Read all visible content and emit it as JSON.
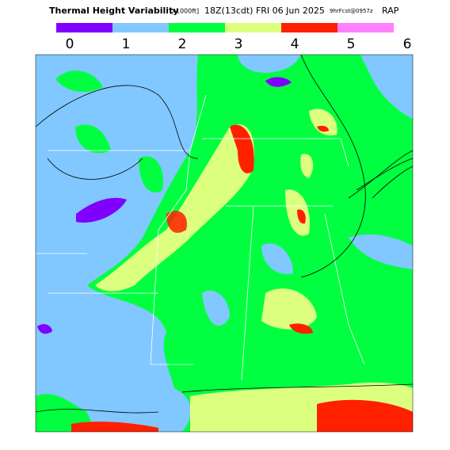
{
  "header": {
    "title": "Thermal Height Variability",
    "units": "[x1000ft]",
    "time": "18Z(13cdt) FRI 06 Jun 2025",
    "forecast": "9hrFcst@0957z",
    "model": "RAP"
  },
  "colorbar": {
    "labels": [
      0,
      1,
      2,
      3,
      4,
      5,
      6
    ],
    "colors": [
      "#8000ff",
      "#80c8ff",
      "#00ff40",
      "#ddff80",
      "#ff2000",
      "#ff80ff"
    ]
  }
}
